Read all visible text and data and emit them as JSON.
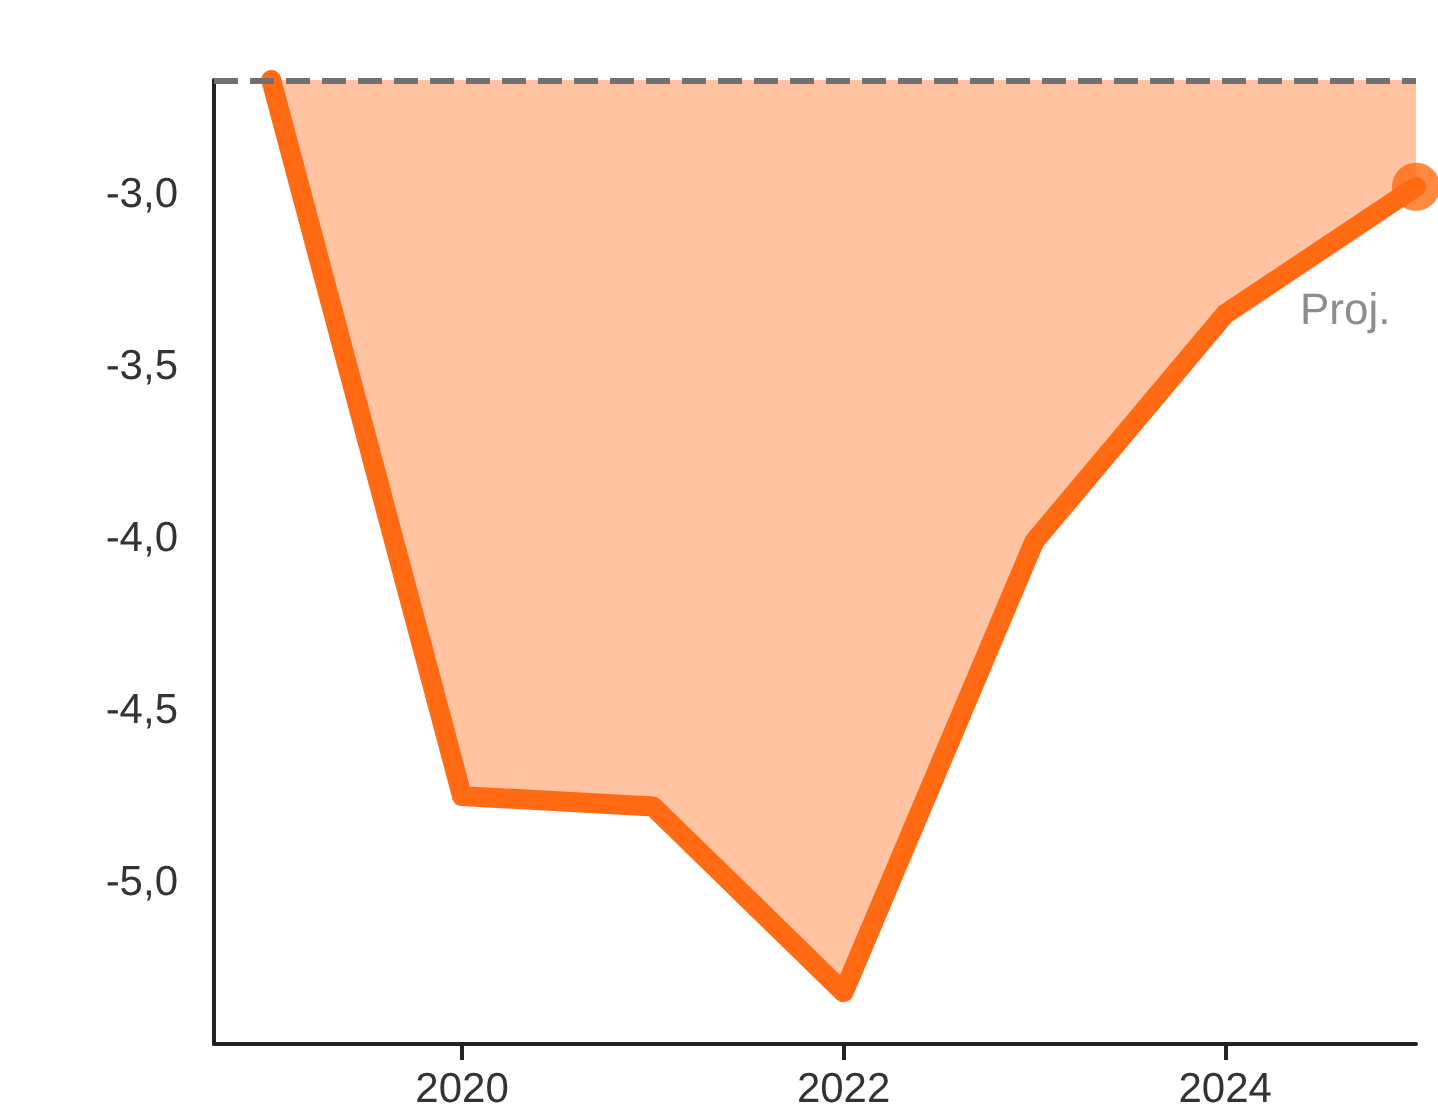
{
  "chart_data": {
    "type": "area",
    "x": [
      2019,
      2020,
      2021,
      2022,
      2023,
      2024,
      2025
    ],
    "series": [
      {
        "color": "#ff6a13",
        "values": [
          -2.67,
          -4.75,
          -4.78,
          -5.32,
          -4.01,
          -3.35,
          -2.98
        ]
      },
      {
        "type": "scatter",
        "marker": "circle",
        "color": "#ff6a13",
        "x": [
          2025
        ],
        "values": [
          -2.98
        ]
      }
    ],
    "xlim": [
      2018.7,
      2025
    ],
    "xticks": [
      2020,
      2022,
      2024
    ],
    "ylim": [
      -5.47,
      -2.67
    ],
    "yticks": [
      {
        "value": -3,
        "label": "-3,0"
      },
      {
        "value": -3.5,
        "label": "-3,5"
      },
      {
        "value": -4,
        "label": "-4,0"
      },
      {
        "value": -4.5,
        "label": "-4,5"
      },
      {
        "value": -5,
        "label": "-5,0"
      }
    ],
    "ref_lines": [
      {
        "axis": "y",
        "value": -2.67,
        "color": "#707070",
        "line_style": "dashed"
      }
    ],
    "annotations": [
      {
        "text": "Proj.",
        "x": 2025,
        "y": -2.98
      }
    ],
    "line_style": "solid",
    "grid": false
  }
}
